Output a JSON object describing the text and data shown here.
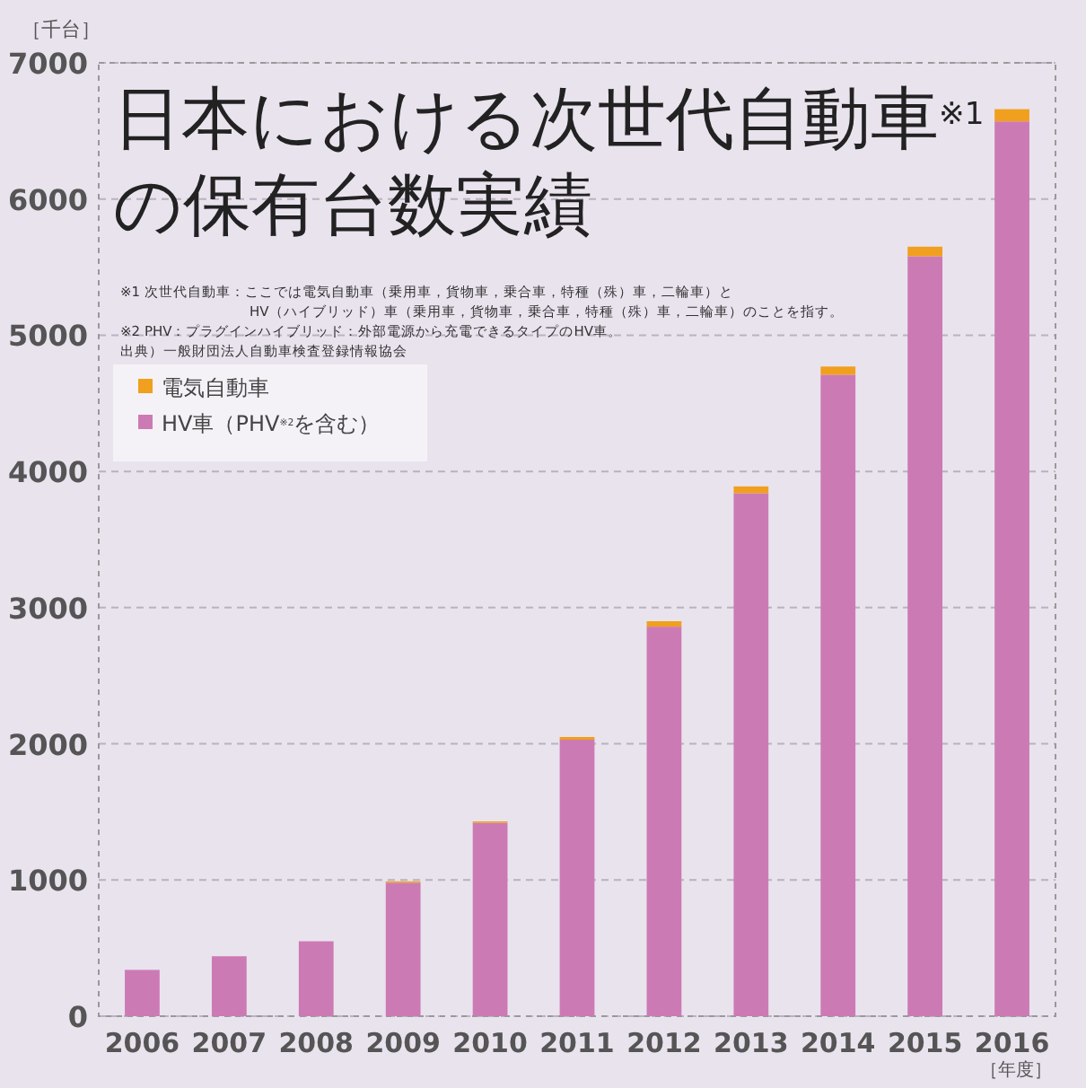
{
  "chart_data": {
    "type": "bar",
    "stacked": true,
    "title": "日本における次世代自動車$^{※1}$の保有台数実績",
    "ylabel": "［千台］",
    "xlabel": "［年度］",
    "categories": [
      "2006",
      "2007",
      "2008",
      "2009",
      "2010",
      "2011",
      "2012",
      "2013",
      "2014",
      "2015",
      "2016"
    ],
    "series": [
      {
        "name": "HV車（PHV$^{※2}$を含む）",
        "color": "#cc7ab4",
        "values": [
          340,
          440,
          550,
          980,
          1420,
          2030,
          2860,
          3840,
          4710,
          5580,
          6570
        ]
      },
      {
        "name": "電気自動車",
        "color": "#f0a01e",
        "values": [
          0,
          0,
          0,
          10,
          10,
          20,
          40,
          50,
          60,
          70,
          90
        ]
      }
    ],
    "ylim": [
      0,
      7000
    ],
    "yticks": [
      0,
      1000,
      2000,
      3000,
      4000,
      5000,
      6000,
      7000
    ],
    "grid": "y",
    "legend": "top left",
    "annotations": [
      "※1 次世代自動車：ここでは電気自動車（乗用車，貨物車，乗合車，特種（殊）車，二輪車）と",
      "HV（ハイブリッド）車（乗用車，貨物車，乗合車，特種（殊）車，二輪車）のことを指す。",
      "※2 PHV：プラグインハイブリッド：外部電源から充電できるタイプのHV車。",
      "出典）一般財団法人自動車検査登録情報協会"
    ]
  }
}
